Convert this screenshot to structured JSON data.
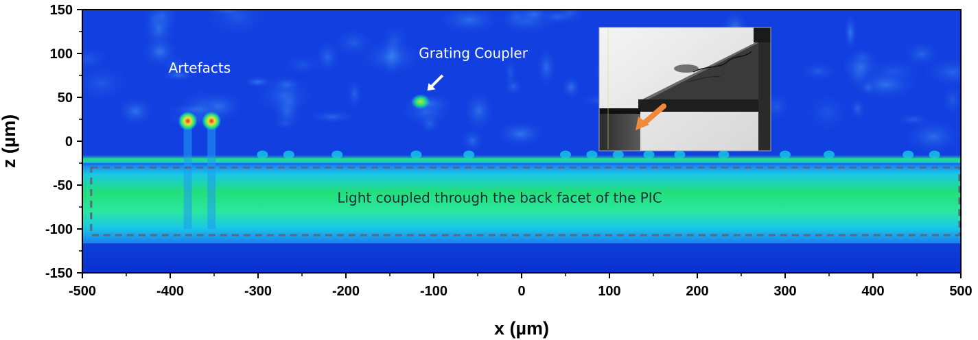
{
  "chart_data": {
    "type": "heatmap",
    "title": "",
    "xlabel": "x (µm)",
    "ylabel": "z (µm)",
    "xlim": [
      -500,
      500
    ],
    "ylim": [
      -150,
      150
    ],
    "x_ticks": [
      "-500",
      "-400",
      "-300",
      "-200",
      "-100",
      "0",
      "100",
      "200",
      "300",
      "400",
      "500"
    ],
    "y_ticks": [
      "150",
      "100",
      "50",
      "0",
      "-50",
      "-100",
      "-150"
    ],
    "colormap": [
      "#0a2fd6",
      "#1f6cf0",
      "#19c8e6",
      "#22e07a",
      "#e8e23a",
      "#e02a1a"
    ],
    "background_color": "#1240e0",
    "features": [
      {
        "label": "Artefacts",
        "spots": [
          {
            "x": -380,
            "z": 23
          },
          {
            "x": -353,
            "z": 23
          }
        ],
        "intensity": "high"
      },
      {
        "label": "Grating Coupler",
        "spots": [
          {
            "x": -115,
            "z": 45
          }
        ],
        "intensity": "medium"
      },
      {
        "label": "Light coupled through the back facet of the PIC",
        "region": {
          "x": [
            -490,
            500
          ],
          "z": [
            -107,
            -30
          ]
        },
        "intensity": "medium"
      }
    ],
    "waveguide_edge_z": -20,
    "annotations": {
      "artefacts": "Artefacts",
      "grating_coupler": "Grating Coupler",
      "back_facet": "Light coupled through the back facet of the PIC"
    },
    "grid": false,
    "legend": "none"
  },
  "inset": {
    "description_color_arrow": "#f08a3a"
  }
}
